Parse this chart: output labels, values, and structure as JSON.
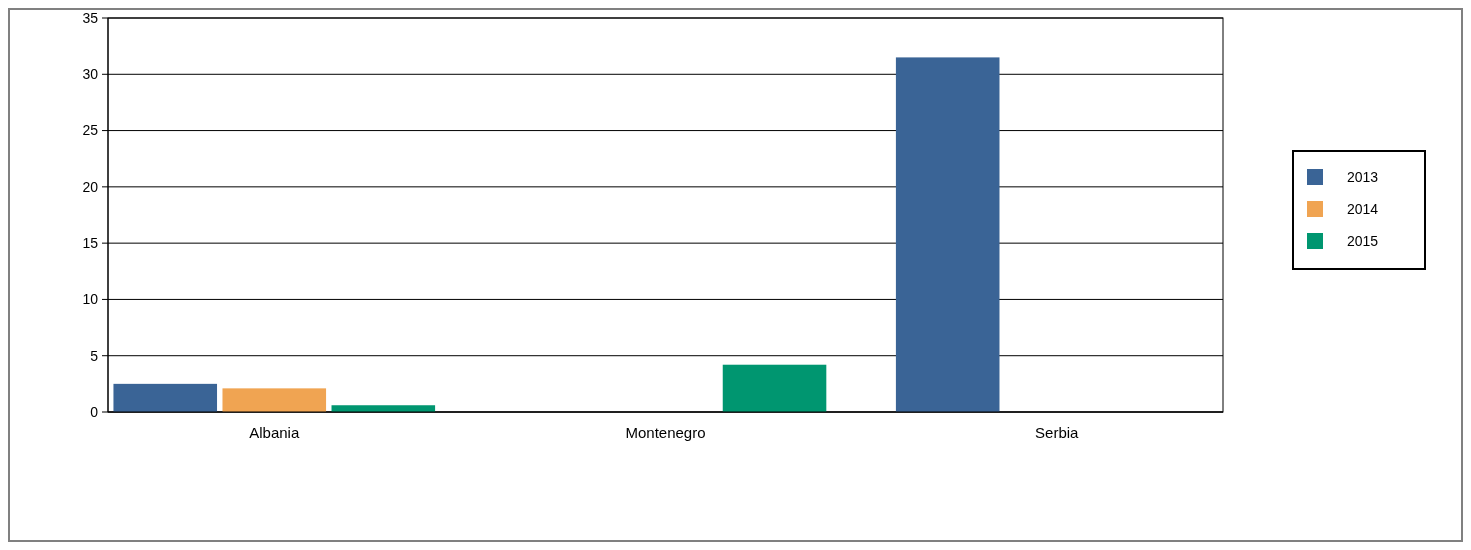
{
  "chart_data": {
    "type": "bar",
    "categories": [
      "Albania",
      "Montenegro",
      "Serbia"
    ],
    "series": [
      {
        "name": "2013",
        "color": "#3a6496",
        "values": [
          2.5,
          0,
          31.5
        ]
      },
      {
        "name": "2014",
        "color": "#f0a452",
        "values": [
          2.1,
          0,
          0
        ]
      },
      {
        "name": "2015",
        "color": "#009670",
        "values": [
          0.6,
          4.2,
          0
        ]
      }
    ],
    "ylim": [
      0,
      35
    ],
    "yticks": [
      0,
      5,
      10,
      15,
      20,
      25,
      30,
      35
    ],
    "grid": "y",
    "legend": "right"
  }
}
